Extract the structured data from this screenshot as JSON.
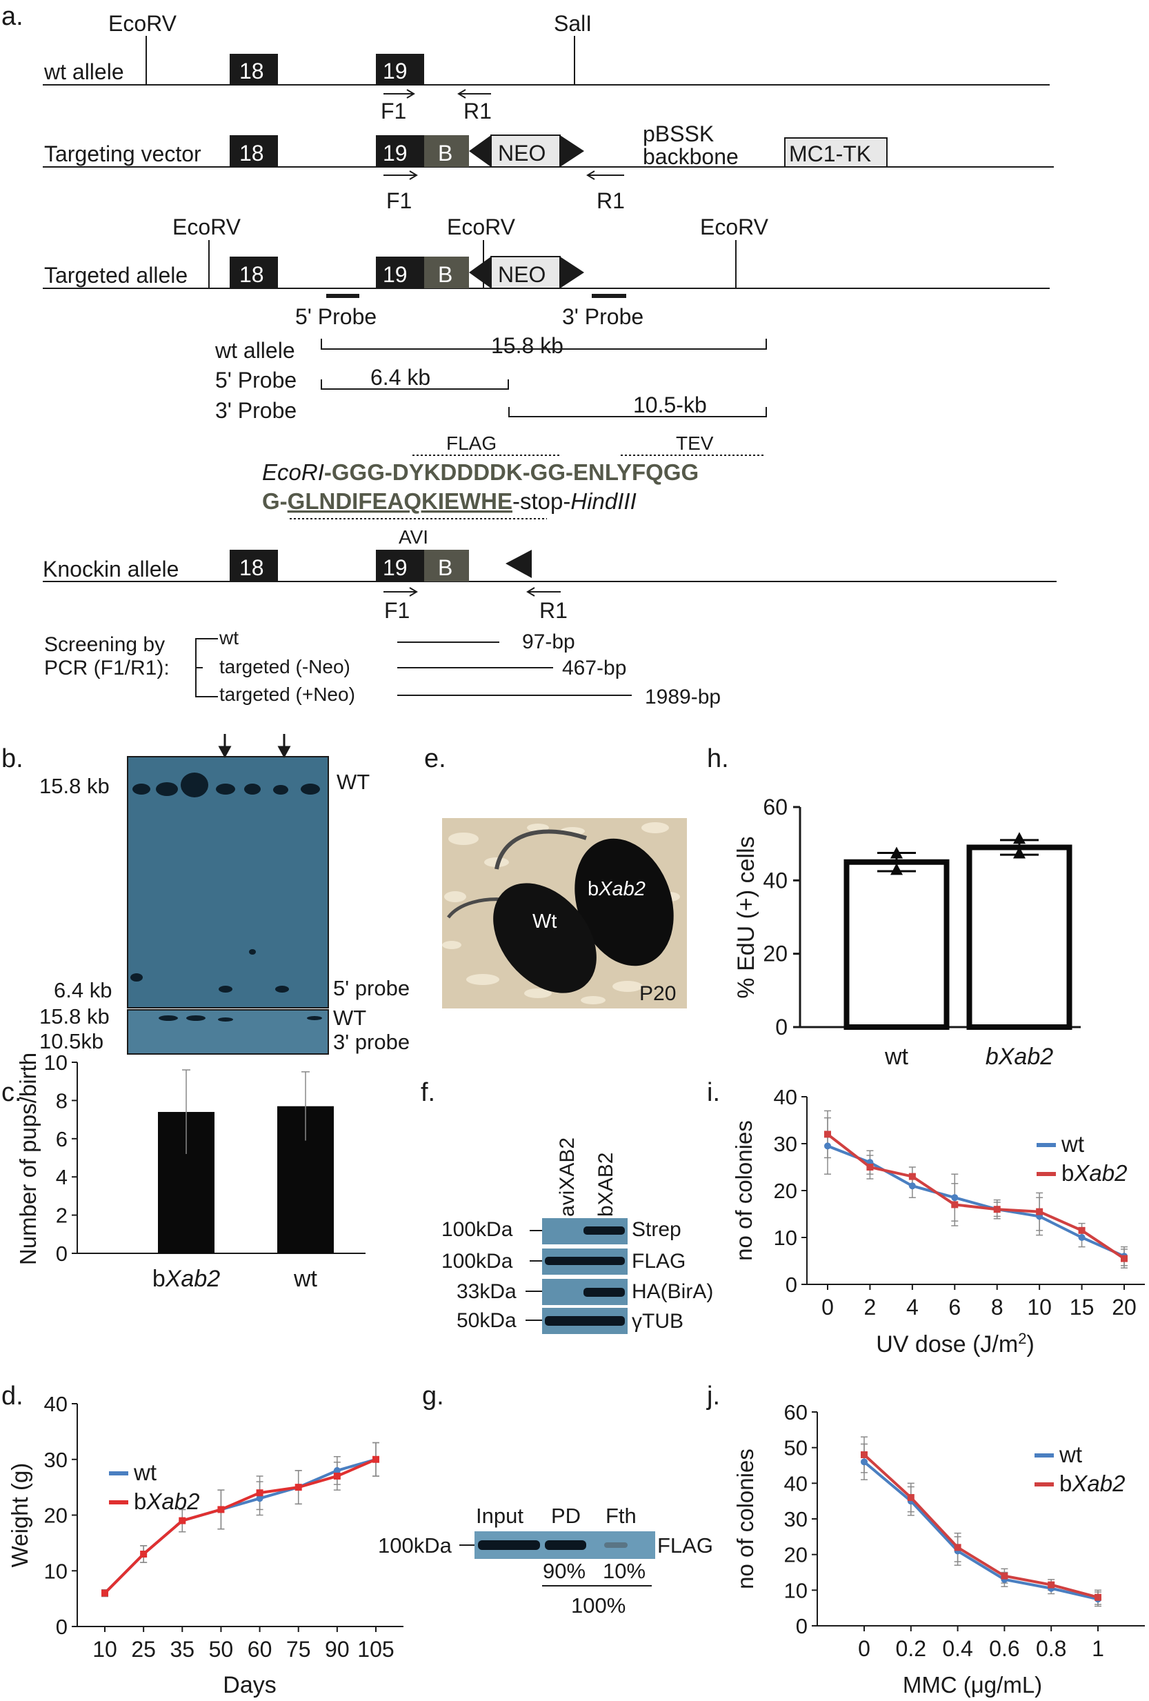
{
  "figure": {
    "panel_letters": [
      "a.",
      "b.",
      "c.",
      "d.",
      "e.",
      "f.",
      "g.",
      "h.",
      "i.",
      "j."
    ],
    "a": {
      "rows": {
        "wt": "wt allele",
        "tv": "Targeting vector",
        "ta": "Targeted allele",
        "ki": "Knockin allele"
      },
      "sites": {
        "ecorv": "EcoRV",
        "sali": "SalI"
      },
      "exons": {
        "e18": "18",
        "e19": "19",
        "b": "B",
        "neo": "NEO",
        "mc1": "MC1-TK"
      },
      "backbone": [
        "pBSSK",
        "backbone"
      ],
      "primers": {
        "f1": "F1",
        "r1": "R1"
      },
      "probes": {
        "p5": "5' Probe",
        "p3": "3' Probe"
      },
      "sizes": {
        "wt_label": "wt allele",
        "wt_size": "15.8 kb",
        "p5_label": "5' Probe",
        "p5_size": "6.4 kb",
        "p3_label": "3' Probe",
        "p3_size": "10.5-kb"
      },
      "tags": {
        "flag": "FLAG",
        "tev": "TEV",
        "avi": "AVI",
        "line1_a": "EcoRI",
        "line1_b": "-GGG-DYKDDDDK-GG-ENLYFQGG",
        "line2_a": "G-",
        "line2_b": "GLNDIFEAQKIEWHE",
        "line2_c": "-stop-",
        "line2_d": "HindIII"
      },
      "screening": {
        "title": [
          "Screening by",
          "PCR (F1/R1):"
        ],
        "rows": [
          {
            "label": "wt",
            "size": "97-bp"
          },
          {
            "label": "targeted (-Neo)",
            "size": "467-bp"
          },
          {
            "label": "targeted (+Neo)",
            "size": "1989-bp"
          }
        ]
      }
    },
    "b": {
      "left_labels": [
        "15.8 kb",
        "6.4 kb",
        "15.8 kb",
        "10.5kb"
      ],
      "right_labels": [
        "WT",
        "5' probe",
        "WT",
        "3' probe"
      ]
    },
    "e": {
      "labels": {
        "mut_b": "b",
        "mut_i": "Xab2",
        "wt": "Wt",
        "age": "P20"
      }
    },
    "f": {
      "lanes": [
        "aviXAB2",
        "bXAB2"
      ],
      "markers": [
        "100kDa",
        "100kDa",
        "33kDa",
        "50kDa"
      ],
      "bands": [
        "Strep",
        "FLAG",
        "HA(BirA)",
        "γTUB"
      ]
    },
    "g": {
      "lanes": [
        "Input",
        "PD",
        "Fth"
      ],
      "marker": "100kDa",
      "band": "FLAG",
      "percents": [
        "90%",
        "10%"
      ],
      "total": "100%"
    }
  },
  "chart_data": [
    {
      "panel": "c",
      "type": "bar",
      "ylabel": "Number of pups/birth",
      "categories": [
        [
          "b",
          "Xab2"
        ],
        [
          "wt",
          ""
        ]
      ],
      "values": [
        7.4,
        7.7
      ],
      "errors": [
        2.2,
        1.8
      ],
      "ylim": [
        0,
        10
      ],
      "yticks": [
        "0",
        "2",
        "4",
        "6",
        "8",
        "10"
      ]
    },
    {
      "panel": "d",
      "type": "line",
      "xlabel": "Days",
      "ylabel": "Weight (g)",
      "x": [
        10,
        25,
        35,
        50,
        60,
        75,
        90,
        105
      ],
      "xticks": [
        "10",
        "25",
        "35",
        "50",
        "60",
        "75",
        "90",
        "105"
      ],
      "yticks": [
        "0",
        "10",
        "20",
        "30",
        "40"
      ],
      "ylim": [
        0,
        40
      ],
      "legend": [
        [
          "wt",
          ""
        ],
        [
          "b",
          "Xab2"
        ]
      ],
      "legend_position": "top-left",
      "series": [
        {
          "name": "wt",
          "color": "#4a7fc1",
          "values": [
            6,
            13,
            19,
            21,
            23,
            25,
            28,
            30
          ],
          "errors": [
            0.6,
            1.5,
            2.0,
            3.5,
            3.0,
            3.0,
            2.5,
            3.0
          ]
        },
        {
          "name": "bXab2",
          "color": "#e03030",
          "values": [
            6,
            13,
            19,
            21,
            24,
            25,
            27,
            30
          ],
          "errors": [
            0.6,
            1.5,
            2.0,
            3.5,
            3.0,
            3.0,
            2.5,
            3.0
          ]
        }
      ]
    },
    {
      "panel": "h",
      "type": "bar",
      "ylabel": "% EdU (+)  cells",
      "categories": [
        [
          "wt",
          ""
        ],
        [
          "",
          "bXab2"
        ]
      ],
      "values": [
        45,
        49
      ],
      "errors": [
        2.5,
        2.0
      ],
      "points": [
        [
          47.5,
          43.0
        ],
        [
          51.5,
          47.5
        ]
      ],
      "ylim": [
        0,
        60
      ],
      "yticks": [
        "0",
        "20",
        "40",
        "60"
      ]
    },
    {
      "panel": "i",
      "type": "line",
      "xlabel": "UV dose (J/m",
      "xlabel_sup": "2",
      "xlabel_end": ")",
      "ylabel": "no of colonies",
      "xticks": [
        "0",
        "2",
        "4",
        "6",
        "8",
        "10",
        "15",
        "20"
      ],
      "yticks": [
        "0",
        "10",
        "20",
        "30",
        "40"
      ],
      "ylim": [
        0,
        40
      ],
      "legend": [
        [
          "wt",
          ""
        ],
        [
          "b",
          "Xab2"
        ]
      ],
      "legend_position": "top-right",
      "series": [
        {
          "name": "wt",
          "color": "#4a7fc1",
          "values": [
            29.5,
            26,
            21,
            18.5,
            16,
            14.5,
            10,
            6
          ],
          "errors": [
            6,
            2.5,
            2.5,
            5,
            2,
            4,
            2,
            2
          ]
        },
        {
          "name": "bXab2",
          "color": "#d04040",
          "values": [
            32,
            25,
            23,
            17,
            16,
            15.5,
            11.5,
            5.5
          ],
          "errors": [
            5,
            2.5,
            2,
            4.5,
            1.5,
            4,
            1.5,
            2
          ]
        }
      ]
    },
    {
      "panel": "j",
      "type": "line",
      "xlabel": "MMC (μg/mL)",
      "ylabel": "no of colonies",
      "xticks": [
        "0",
        "0.2",
        "0.4",
        "0.6",
        "0.8",
        "1"
      ],
      "yticks": [
        "0",
        "10",
        "20",
        "30",
        "40",
        "50",
        "60"
      ],
      "ylim": [
        0,
        60
      ],
      "legend": [
        [
          "wt",
          ""
        ],
        [
          "b",
          "Xab2"
        ]
      ],
      "legend_position": "top-right",
      "series": [
        {
          "name": "wt",
          "color": "#4a7fc1",
          "values": [
            46,
            35,
            21,
            13,
            10.5,
            7.5
          ],
          "errors": [
            5,
            4,
            4,
            2,
            1.5,
            2
          ]
        },
        {
          "name": "bXab2",
          "color": "#d04040",
          "values": [
            48,
            36,
            22,
            14,
            11.5,
            8
          ],
          "errors": [
            5,
            4,
            4,
            2,
            1.5,
            2
          ]
        }
      ]
    }
  ]
}
